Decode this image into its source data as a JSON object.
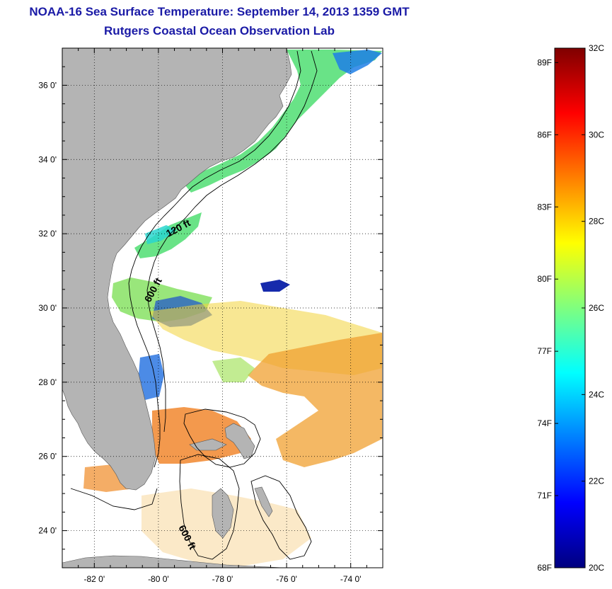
{
  "title": "NOAA-16 Sea Surface Temperature:  September 14, 2013 1359 GMT",
  "subtitle": "Rutgers Coastal Ocean Observation Lab",
  "map": {
    "lon_range": [
      -83,
      -73
    ],
    "lat_range": [
      23,
      37
    ],
    "lat_ticks": [
      "36 0'",
      "34 0'",
      "32 0'",
      "30 0'",
      "28 0'",
      "26 0'",
      "24 0'"
    ],
    "lat_values": [
      36,
      34,
      32,
      30,
      28,
      26,
      24
    ],
    "lon_ticks": [
      "-82 0'",
      "-80 0'",
      "-78 0'",
      "-76 0'",
      "-74 0'"
    ],
    "lon_values": [
      -82,
      -80,
      -78,
      -76,
      -74
    ],
    "contour_labels": [
      "120 ft",
      "600 ft",
      "600 ft"
    ],
    "land_color": "#b4b4b4",
    "grid": "dotted"
  },
  "colorbar": {
    "fahrenheit_labels": [
      "89F",
      "86F",
      "83F",
      "80F",
      "77F",
      "74F",
      "71F",
      "68F"
    ],
    "fahrenheit_values": [
      89,
      86,
      83,
      80,
      77,
      74,
      71,
      68
    ],
    "celsius_labels": [
      "32C",
      "30C",
      "28C",
      "26C",
      "24C",
      "22C",
      "20C"
    ],
    "celsius_values": [
      32,
      30,
      28,
      26,
      24,
      22,
      20
    ],
    "range_c": [
      20,
      32
    ],
    "colors": [
      "#00007f",
      "#0000ff",
      "#007fff",
      "#00ffff",
      "#7fff7f",
      "#ffff00",
      "#ff7f00",
      "#ff0000",
      "#7f0000"
    ]
  }
}
